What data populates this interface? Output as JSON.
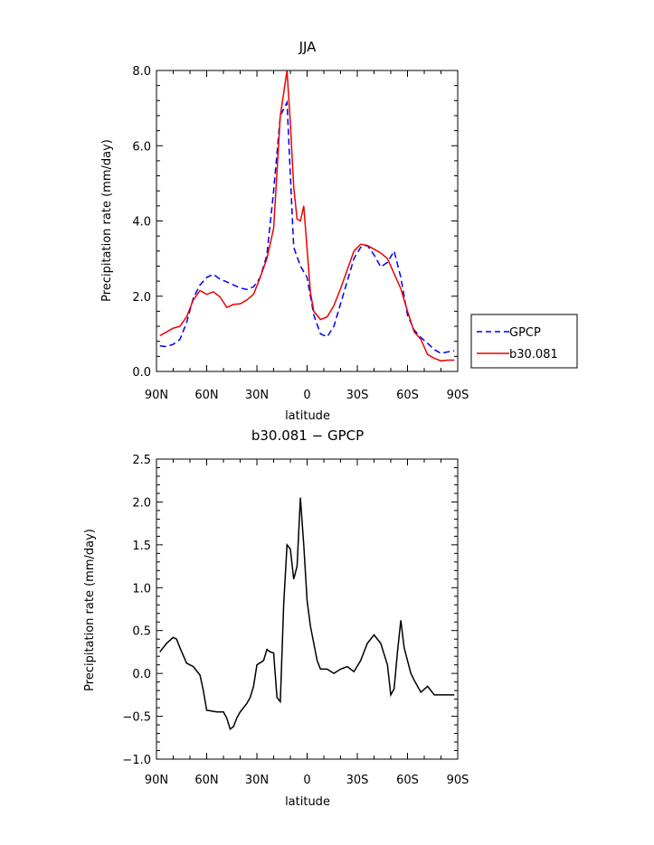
{
  "chart_data": [
    {
      "type": "line",
      "title": "JJA",
      "xlabel": "latitude",
      "ylabel": "Precipitation rate (mm/day)",
      "xlim": [
        90,
        -90
      ],
      "ylim": [
        0,
        8
      ],
      "x_tick_values": [
        90,
        60,
        30,
        0,
        -30,
        -60,
        -90
      ],
      "x_tick_labels": [
        "90N",
        "60N",
        "30N",
        "0",
        "30S",
        "60S",
        "90S"
      ],
      "y_tick_values": [
        0,
        2,
        4,
        6,
        8
      ],
      "y_tick_labels": [
        "0.0",
        "2.0",
        "4.0",
        "6.0",
        "8.0"
      ],
      "grid": false,
      "legend_position": "right",
      "series": [
        {
          "name": "GPCP",
          "color": "#0000ee",
          "dash": "dashed",
          "x": [
            88,
            84,
            80,
            76,
            72,
            68,
            64,
            60,
            56,
            52,
            48,
            44,
            40,
            36,
            32,
            28,
            24,
            20,
            16,
            12,
            8,
            4,
            0,
            -4,
            -8,
            -12,
            -16,
            -20,
            -24,
            -28,
            -32,
            -36,
            -40,
            -44,
            -48,
            -52,
            -56,
            -60,
            -64,
            -68,
            -72,
            -76,
            -80,
            -84,
            -88
          ],
          "values": [
            0.68,
            0.66,
            0.72,
            0.85,
            1.3,
            1.95,
            2.3,
            2.5,
            2.58,
            2.45,
            2.38,
            2.3,
            2.22,
            2.18,
            2.25,
            2.5,
            3.1,
            4.8,
            6.8,
            7.15,
            3.3,
            2.8,
            2.5,
            1.5,
            1.0,
            0.92,
            1.2,
            1.8,
            2.4,
            3.0,
            3.3,
            3.35,
            3.1,
            2.78,
            2.9,
            3.2,
            2.5,
            1.5,
            1.1,
            0.9,
            0.75,
            0.58,
            0.48,
            0.52,
            0.55
          ]
        },
        {
          "name": "b30.081",
          "color": "#ee0000",
          "dash": "solid",
          "x": [
            88,
            84,
            80,
            76,
            72,
            68,
            64,
            60,
            56,
            52,
            48,
            44,
            40,
            36,
            32,
            28,
            24,
            20,
            16,
            12,
            10,
            8,
            6,
            4,
            2,
            -2,
            -4,
            -8,
            -12,
            -16,
            -20,
            -24,
            -28,
            -32,
            -36,
            -40,
            -44,
            -48,
            -52,
            -56,
            -60,
            -64,
            -68,
            -72,
            -76,
            -80,
            -84,
            -88
          ],
          "values": [
            0.95,
            1.05,
            1.15,
            1.2,
            1.45,
            1.9,
            2.15,
            2.05,
            2.12,
            1.98,
            1.7,
            1.78,
            1.8,
            1.9,
            2.05,
            2.5,
            3.0,
            3.8,
            6.8,
            8.0,
            6.6,
            4.9,
            4.05,
            4.0,
            4.4,
            2.1,
            1.6,
            1.38,
            1.45,
            1.75,
            2.2,
            2.7,
            3.2,
            3.38,
            3.35,
            3.25,
            3.15,
            3.0,
            2.6,
            2.2,
            1.6,
            1.05,
            0.85,
            0.45,
            0.35,
            0.28,
            0.3,
            0.3
          ]
        }
      ]
    },
    {
      "type": "line",
      "title": "b30.081 − GPCP",
      "xlabel": "latitude",
      "ylabel": "Precipitation rate (mm/day)",
      "xlim": [
        90,
        -90
      ],
      "ylim": [
        -1.0,
        2.5
      ],
      "x_tick_values": [
        90,
        60,
        30,
        0,
        -30,
        -60,
        -90
      ],
      "x_tick_labels": [
        "90N",
        "60N",
        "30N",
        "0",
        "30S",
        "60S",
        "90S"
      ],
      "y_tick_values": [
        -1.0,
        -0.5,
        0.0,
        0.5,
        1.0,
        1.5,
        2.0,
        2.5
      ],
      "y_tick_labels": [
        "−1.0",
        "−0.5",
        "0.0",
        "0.5",
        "1.0",
        "1.5",
        "2.0",
        "2.5"
      ],
      "grid": false,
      "series": [
        {
          "color": "#000000",
          "dash": "solid",
          "x": [
            88,
            84,
            80,
            78,
            76,
            72,
            68,
            64,
            62,
            60,
            54,
            50,
            48,
            46,
            44,
            42,
            40,
            36,
            34,
            32,
            30,
            26,
            24,
            22,
            20,
            18,
            16,
            14,
            12,
            10,
            8,
            6,
            4,
            2,
            0,
            -2,
            -4,
            -6,
            -8,
            -12,
            -16,
            -20,
            -24,
            -28,
            -32,
            -36,
            -40,
            -44,
            -48,
            -50,
            -52,
            -54,
            -56,
            -58,
            -60,
            -62,
            -64,
            -68,
            -72,
            -76,
            -80,
            -84,
            -88
          ],
          "values": [
            0.25,
            0.35,
            0.42,
            0.4,
            0.3,
            0.12,
            0.08,
            -0.02,
            -0.2,
            -0.43,
            -0.45,
            -0.45,
            -0.52,
            -0.65,
            -0.62,
            -0.52,
            -0.45,
            -0.35,
            -0.28,
            -0.15,
            0.1,
            0.15,
            0.28,
            0.25,
            0.24,
            -0.28,
            -0.33,
            0.8,
            1.5,
            1.45,
            1.1,
            1.25,
            2.05,
            1.5,
            0.85,
            0.55,
            0.35,
            0.15,
            0.05,
            0.05,
            0.0,
            0.05,
            0.08,
            0.02,
            0.15,
            0.35,
            0.45,
            0.35,
            0.1,
            -0.25,
            -0.18,
            0.25,
            0.62,
            0.3,
            0.15,
            0.0,
            -0.08,
            -0.22,
            -0.15,
            -0.25,
            -0.25,
            -0.25,
            -0.25
          ]
        }
      ]
    }
  ]
}
